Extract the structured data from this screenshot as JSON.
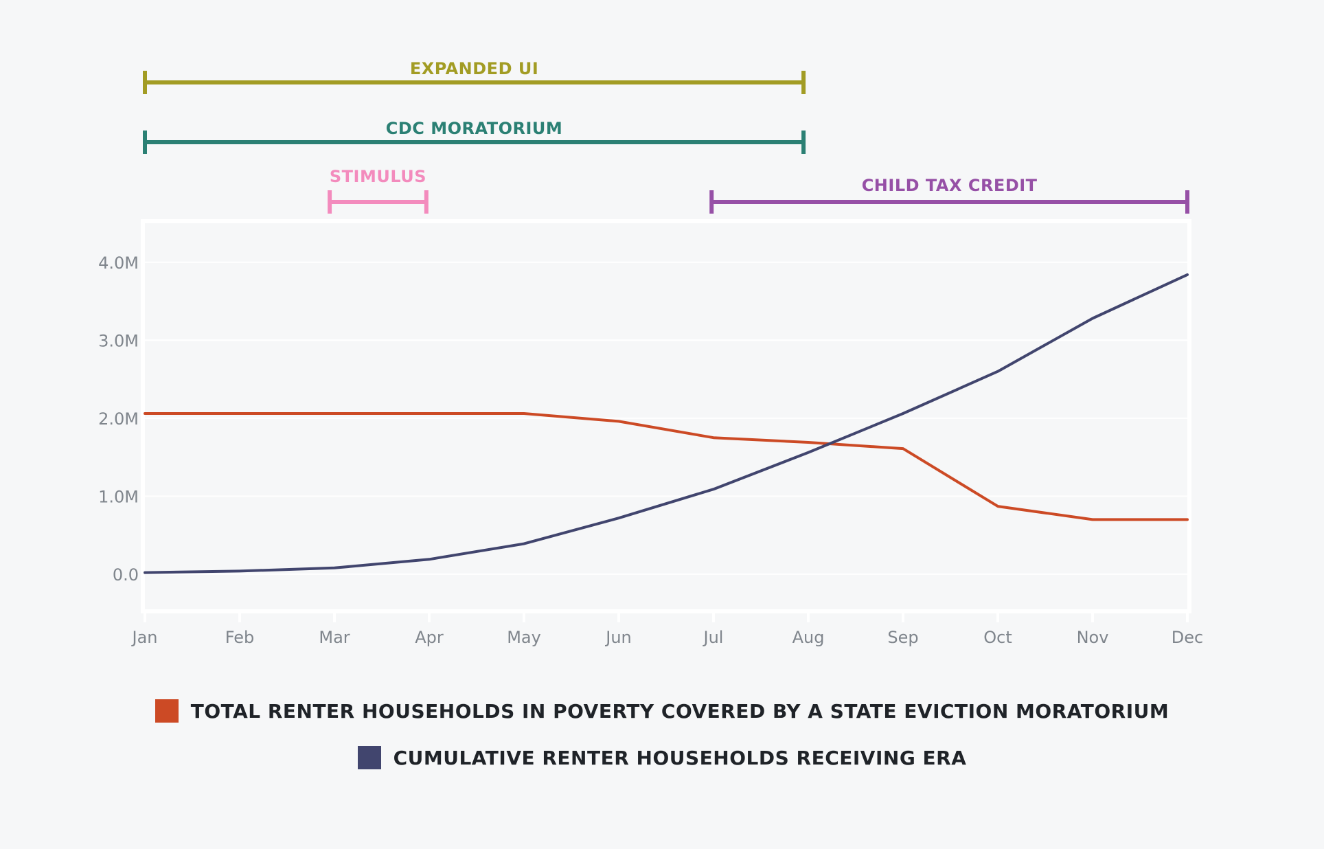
{
  "chart_data": {
    "type": "line",
    "categories": [
      "Jan",
      "Feb",
      "Mar",
      "Apr",
      "May",
      "Jun",
      "Jul",
      "Aug",
      "Sep",
      "Oct",
      "Nov",
      "Dec"
    ],
    "series": [
      {
        "name": "TOTAL RENTER HOUSEHOLDS IN POVERTY COVERED BY A STATE EVICTION MORATORIUM",
        "color": "#cc4a25",
        "values": [
          2.06,
          2.06,
          2.06,
          2.06,
          2.06,
          1.96,
          1.75,
          1.69,
          1.61,
          0.87,
          0.7,
          0.7
        ]
      },
      {
        "name": "CUMULATIVE RENTER HOUSEHOLDS RECEIVING ERA",
        "color": "#41456e",
        "values": [
          0.02,
          0.04,
          0.08,
          0.19,
          0.39,
          0.72,
          1.09,
          1.56,
          2.06,
          2.6,
          3.28,
          3.84
        ]
      }
    ],
    "yticks": [
      0,
      1,
      2,
      3,
      4
    ],
    "ytick_labels": [
      "0.0",
      "1.0M",
      "2.0M",
      "3.0M",
      "4.0M"
    ],
    "ylim": [
      -0.45,
      4.5
    ],
    "xlim": [
      0,
      11
    ],
    "grid": true,
    "legend_position": "bottom-center",
    "timelines": [
      {
        "label": "EXPANDED UI",
        "start": 0,
        "end": 6.95,
        "color": "#a29c24",
        "row": "top"
      },
      {
        "label": "CDC MORATORIUM",
        "start": 0,
        "end": 6.95,
        "color": "#2b8074",
        "row": "second"
      },
      {
        "label": "STIMULUS",
        "start": 1.95,
        "end": 2.97,
        "color": "#f38bbd",
        "row": "third"
      },
      {
        "label": "CHILD TAX CREDIT",
        "start": 5.98,
        "end": 11,
        "color": "#9650a6",
        "row": "third"
      }
    ]
  }
}
